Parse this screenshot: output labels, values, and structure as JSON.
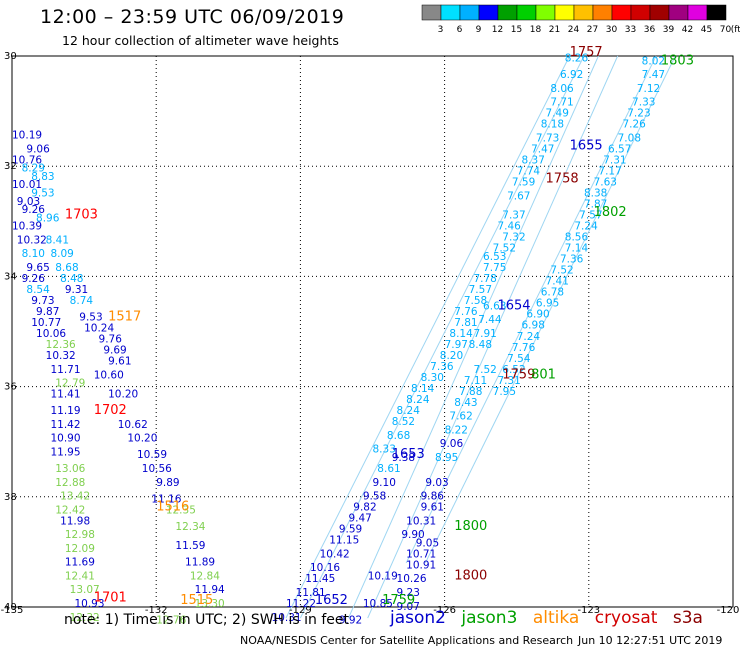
{
  "title": "12:00 – 23:59 UTC 06/09/2019",
  "subtitle": "12 hour collection of altimeter wave heights",
  "colorbar": {
    "labels": [
      "3",
      "6",
      "9",
      "12",
      "15",
      "18",
      "21",
      "24",
      "27",
      "30",
      "33",
      "36",
      "39",
      "42",
      "45",
      "70",
      "(ft)"
    ],
    "colors": [
      "#888888",
      "#00e0ff",
      "#00b0ff",
      "#0000ff",
      "#00a000",
      "#00d000",
      "#80ff00",
      "#ffff00",
      "#ffc000",
      "#ff8000",
      "#ff0000",
      "#d00000",
      "#a00000",
      "#a00080",
      "#e000e0",
      "#000000"
    ]
  },
  "axes": {
    "lon_labels": [
      "-135",
      "-132",
      "-129",
      "-126",
      "-123",
      "-120"
    ],
    "lat_labels": [
      "30",
      "32",
      "34",
      "36",
      "38",
      "40"
    ]
  },
  "note": "note: 1) Time is in UTC; 2) SWH is in feet",
  "legend": [
    {
      "label": "jason2",
      "color": "#0000cc"
    },
    {
      "label": "jason3",
      "color": "#00a000"
    },
    {
      "label": "altika",
      "color": "#ff8c00"
    },
    {
      "label": "cryosat",
      "color": "#d00000"
    },
    {
      "label": "s3a",
      "color": "#8b0000"
    }
  ],
  "credit": "NOAA/NESDIS Center for Satellite Applications and Research",
  "timestamp": "Jun 10 12:27:51 UTC 2019",
  "time_labels": [
    {
      "text": "1703",
      "color": "#ff0000",
      "lon": -133.9,
      "lat": 32.95
    },
    {
      "text": "1517",
      "color": "#ff8c00",
      "lon": -133.0,
      "lat": 34.8
    },
    {
      "text": "1702",
      "color": "#ff0000",
      "lon": -133.3,
      "lat": 36.5
    },
    {
      "text": "1516",
      "color": "#ff8c00",
      "lon": -132.0,
      "lat": 38.25
    },
    {
      "text": "1701",
      "color": "#ff0000",
      "lon": -133.3,
      "lat": 39.9
    },
    {
      "text": "1515",
      "color": "#ff8c00",
      "lon": -131.5,
      "lat": 39.95
    },
    {
      "text": "1652",
      "color": "#0000cc",
      "lon": -128.7,
      "lat": 39.95
    },
    {
      "text": "1759",
      "color": "#00a000",
      "lon": -127.3,
      "lat": 39.95
    },
    {
      "text": "1800",
      "color": "#00a000",
      "lon": -125.8,
      "lat": 38.6
    },
    {
      "text": "1800",
      "color": "#8b0000",
      "lon": -125.8,
      "lat": 39.5
    },
    {
      "text": "1653",
      "color": "#0000cc",
      "lon": -127.1,
      "lat": 37.3
    },
    {
      "text": "1759",
      "color": "#8b0000",
      "lon": -124.8,
      "lat": 35.85
    },
    {
      "text": "801",
      "color": "#00a000",
      "lon": -124.2,
      "lat": 35.85
    },
    {
      "text": "1654",
      "color": "#0000cc",
      "lon": -124.9,
      "lat": 34.6
    },
    {
      "text": "1802",
      "color": "#00a000",
      "lon": -122.9,
      "lat": 32.9
    },
    {
      "text": "1758",
      "color": "#8b0000",
      "lon": -123.9,
      "lat": 32.3
    },
    {
      "text": "1655",
      "color": "#0000cc",
      "lon": -123.4,
      "lat": 31.7
    },
    {
      "text": "1757",
      "color": "#8b0000",
      "lon": -123.4,
      "lat": 30.0
    },
    {
      "text": "1803",
      "color": "#00a000",
      "lon": -121.5,
      "lat": 30.15
    }
  ],
  "swh_points": [
    {
      "v": "10.19",
      "c": "#0000cc",
      "lon": -135.0,
      "lat": 31.5
    },
    {
      "v": "9.06",
      "c": "#0000cc",
      "lon": -134.7,
      "lat": 31.75
    },
    {
      "v": "10.76",
      "c": "#0000cc",
      "lon": -135.0,
      "lat": 31.95
    },
    {
      "v": "8.29",
      "c": "#00b0ff",
      "lon": -134.8,
      "lat": 32.1
    },
    {
      "v": "8.83",
      "c": "#00b0ff",
      "lon": -134.6,
      "lat": 32.25
    },
    {
      "v": "10.01",
      "c": "#0000cc",
      "lon": -135.0,
      "lat": 32.4
    },
    {
      "v": "9.53",
      "c": "#00b0ff",
      "lon": -134.6,
      "lat": 32.55
    },
    {
      "v": "9.03",
      "c": "#0000cc",
      "lon": -134.9,
      "lat": 32.7
    },
    {
      "v": "9.26",
      "c": "#0000cc",
      "lon": -134.8,
      "lat": 32.85
    },
    {
      "v": "8.96",
      "c": "#00b0ff",
      "lon": -134.5,
      "lat": 33.0
    },
    {
      "v": "10.39",
      "c": "#0000cc",
      "lon": -135.0,
      "lat": 33.15
    },
    {
      "v": "10.32",
      "c": "#0000cc",
      "lon": -134.9,
      "lat": 33.4
    },
    {
      "v": "8.41",
      "c": "#00b0ff",
      "lon": -134.3,
      "lat": 33.4
    },
    {
      "v": "8.10",
      "c": "#00b0ff",
      "lon": -134.8,
      "lat": 33.65
    },
    {
      "v": "8.09",
      "c": "#00b0ff",
      "lon": -134.2,
      "lat": 33.65
    },
    {
      "v": "9.65",
      "c": "#0000cc",
      "lon": -134.7,
      "lat": 33.9
    },
    {
      "v": "8.68",
      "c": "#00b0ff",
      "lon": -134.1,
      "lat": 33.9
    },
    {
      "v": "9.26",
      "c": "#0000cc",
      "lon": -134.8,
      "lat": 34.1
    },
    {
      "v": "8.48",
      "c": "#00b0ff",
      "lon": -134.0,
      "lat": 34.1
    },
    {
      "v": "8.54",
      "c": "#00b0ff",
      "lon": -134.7,
      "lat": 34.3
    },
    {
      "v": "9.31",
      "c": "#0000cc",
      "lon": -133.9,
      "lat": 34.3
    },
    {
      "v": "9.73",
      "c": "#0000cc",
      "lon": -134.6,
      "lat": 34.5
    },
    {
      "v": "8.74",
      "c": "#00b0ff",
      "lon": -133.8,
      "lat": 34.5
    },
    {
      "v": "9.87",
      "c": "#0000cc",
      "lon": -134.5,
      "lat": 34.7
    },
    {
      "v": "9.53",
      "c": "#0000cc",
      "lon": -133.6,
      "lat": 34.8
    },
    {
      "v": "10.77",
      "c": "#0000cc",
      "lon": -134.6,
      "lat": 34.9
    },
    {
      "v": "10.24",
      "c": "#0000cc",
      "lon": -133.5,
      "lat": 35.0
    },
    {
      "v": "10.06",
      "c": "#0000cc",
      "lon": -134.5,
      "lat": 35.1
    },
    {
      "v": "9.76",
      "c": "#0000cc",
      "lon": -133.2,
      "lat": 35.2
    },
    {
      "v": "12.36",
      "c": "#80d050",
      "lon": -134.3,
      "lat": 35.3
    },
    {
      "v": "9.69",
      "c": "#0000cc",
      "lon": -133.1,
      "lat": 35.4
    },
    {
      "v": "10.32",
      "c": "#0000cc",
      "lon": -134.3,
      "lat": 35.5
    },
    {
      "v": "9.61",
      "c": "#0000cc",
      "lon": -133.0,
      "lat": 35.6
    },
    {
      "v": "11.71",
      "c": "#0000cc",
      "lon": -134.2,
      "lat": 35.75
    },
    {
      "v": "10.60",
      "c": "#0000cc",
      "lon": -133.3,
      "lat": 35.85
    },
    {
      "v": "12.79",
      "c": "#80d050",
      "lon": -134.1,
      "lat": 36.0
    },
    {
      "v": "11.41",
      "c": "#0000cc",
      "lon": -134.2,
      "lat": 36.2
    },
    {
      "v": "10.20",
      "c": "#0000cc",
      "lon": -133.0,
      "lat": 36.2
    },
    {
      "v": "11.19",
      "c": "#0000cc",
      "lon": -134.2,
      "lat": 36.5
    },
    {
      "v": "11.42",
      "c": "#0000cc",
      "lon": -134.2,
      "lat": 36.75
    },
    {
      "v": "10.62",
      "c": "#0000cc",
      "lon": -132.8,
      "lat": 36.75
    },
    {
      "v": "10.90",
      "c": "#0000cc",
      "lon": -134.2,
      "lat": 37.0
    },
    {
      "v": "10.20",
      "c": "#0000cc",
      "lon": -132.6,
      "lat": 37.0
    },
    {
      "v": "11.95",
      "c": "#0000cc",
      "lon": -134.2,
      "lat": 37.25
    },
    {
      "v": "10.59",
      "c": "#0000cc",
      "lon": -132.4,
      "lat": 37.3
    },
    {
      "v": "13.06",
      "c": "#80d050",
      "lon": -134.1,
      "lat": 37.55
    },
    {
      "v": "10.56",
      "c": "#0000cc",
      "lon": -132.3,
      "lat": 37.55
    },
    {
      "v": "12.88",
      "c": "#80d050",
      "lon": -134.1,
      "lat": 37.8
    },
    {
      "v": "9.89",
      "c": "#0000cc",
      "lon": -132.0,
      "lat": 37.8
    },
    {
      "v": "13.42",
      "c": "#80d050",
      "lon": -134.0,
      "lat": 38.05
    },
    {
      "v": "11.16",
      "c": "#0000cc",
      "lon": -132.1,
      "lat": 38.1
    },
    {
      "v": "12.42",
      "c": "#80d050",
      "lon": -134.1,
      "lat": 38.3
    },
    {
      "v": "12.35",
      "c": "#80d050",
      "lon": -131.8,
      "lat": 38.3
    },
    {
      "v": "11.98",
      "c": "#0000cc",
      "lon": -134.0,
      "lat": 38.5
    },
    {
      "v": "12.98",
      "c": "#80d050",
      "lon": -133.9,
      "lat": 38.75
    },
    {
      "v": "12.34",
      "c": "#80d050",
      "lon": -131.6,
      "lat": 38.6
    },
    {
      "v": "12.09",
      "c": "#80d050",
      "lon": -133.9,
      "lat": 39.0
    },
    {
      "v": "11.59",
      "c": "#0000cc",
      "lon": -131.6,
      "lat": 38.95
    },
    {
      "v": "11.69",
      "c": "#0000cc",
      "lon": -133.9,
      "lat": 39.25
    },
    {
      "v": "11.89",
      "c": "#0000cc",
      "lon": -131.4,
      "lat": 39.25
    },
    {
      "v": "12.41",
      "c": "#80d050",
      "lon": -133.9,
      "lat": 39.5
    },
    {
      "v": "12.84",
      "c": "#80d050",
      "lon": -131.3,
      "lat": 39.5
    },
    {
      "v": "13.07",
      "c": "#80d050",
      "lon": -133.8,
      "lat": 39.75
    },
    {
      "v": "11.94",
      "c": "#0000cc",
      "lon": -131.2,
      "lat": 39.75
    },
    {
      "v": "10.93",
      "c": "#0000cc",
      "lon": -133.7,
      "lat": 40.0
    },
    {
      "v": "13.30",
      "c": "#80d050",
      "lon": -131.2,
      "lat": 40.0
    },
    {
      "v": "12.32",
      "c": "#80d050",
      "lon": -133.8,
      "lat": 40.25
    },
    {
      "v": "12.76",
      "c": "#80d050",
      "lon": -132.0,
      "lat": 40.3
    },
    {
      "v": "10.31",
      "c": "#0000cc",
      "lon": -129.6,
      "lat": 40.25
    },
    {
      "v": "11.22",
      "c": "#0000cc",
      "lon": -129.3,
      "lat": 40.0
    },
    {
      "v": "11.81",
      "c": "#0000cc",
      "lon": -129.1,
      "lat": 39.8
    },
    {
      "v": "11.45",
      "c": "#0000cc",
      "lon": -128.9,
      "lat": 39.55
    },
    {
      "v": "10.16",
      "c": "#0000cc",
      "lon": -128.8,
      "lat": 39.35
    },
    {
      "v": "10.42",
      "c": "#0000cc",
      "lon": -128.6,
      "lat": 39.1
    },
    {
      "v": "11.15",
      "c": "#0000cc",
      "lon": -128.4,
      "lat": 38.85
    },
    {
      "v": "9.59",
      "c": "#0000cc",
      "lon": -128.2,
      "lat": 38.65
    },
    {
      "v": "9.47",
      "c": "#0000cc",
      "lon": -128.0,
      "lat": 38.45
    },
    {
      "v": "9.82",
      "c": "#0000cc",
      "lon": -127.9,
      "lat": 38.25
    },
    {
      "v": "9.58",
      "c": "#0000cc",
      "lon": -127.7,
      "lat": 38.05
    },
    {
      "v": "9.10",
      "c": "#0000cc",
      "lon": -127.5,
      "lat": 37.8
    },
    {
      "v": "8.61",
      "c": "#00b0ff",
      "lon": -127.4,
      "lat": 37.55
    },
    {
      "v": "9.38",
      "c": "#0000cc",
      "lon": -127.1,
      "lat": 37.35
    },
    {
      "v": "8.33",
      "c": "#00b0ff",
      "lon": -127.5,
      "lat": 37.2
    },
    {
      "v": "8.68",
      "c": "#00b0ff",
      "lon": -127.2,
      "lat": 36.95
    },
    {
      "v": "8.52",
      "c": "#00b0ff",
      "lon": -127.1,
      "lat": 36.7
    },
    {
      "v": "8.24",
      "c": "#00b0ff",
      "lon": -127.0,
      "lat": 36.5
    },
    {
      "v": "8.24",
      "c": "#00b0ff",
      "lon": -126.8,
      "lat": 36.3
    },
    {
      "v": "8.14",
      "c": "#00b0ff",
      "lon": -126.7,
      "lat": 36.1
    },
    {
      "v": "8.30",
      "c": "#00b0ff",
      "lon": -126.5,
      "lat": 35.9
    },
    {
      "v": "7.36",
      "c": "#00b0ff",
      "lon": -126.3,
      "lat": 35.7
    },
    {
      "v": "8.20",
      "c": "#00b0ff",
      "lon": -126.1,
      "lat": 35.5
    },
    {
      "v": "7.97",
      "c": "#00b0ff",
      "lon": -126.0,
      "lat": 35.3
    },
    {
      "v": "8.14",
      "c": "#00b0ff",
      "lon": -125.9,
      "lat": 35.1
    },
    {
      "v": "7.81",
      "c": "#00b0ff",
      "lon": -125.8,
      "lat": 34.9
    },
    {
      "v": "7.76",
      "c": "#00b0ff",
      "lon": -125.8,
      "lat": 34.7
    },
    {
      "v": "7.58",
      "c": "#00b0ff",
      "lon": -125.6,
      "lat": 34.5
    },
    {
      "v": "7.57",
      "c": "#00b0ff",
      "lon": -125.5,
      "lat": 34.3
    },
    {
      "v": "7.78",
      "c": "#00b0ff",
      "lon": -125.4,
      "lat": 34.1
    },
    {
      "v": "7.75",
      "c": "#00b0ff",
      "lon": -125.2,
      "lat": 33.9
    },
    {
      "v": "6.53",
      "c": "#00b0ff",
      "lon": -125.2,
      "lat": 33.7
    },
    {
      "v": "7.52",
      "c": "#00b0ff",
      "lon": -125.0,
      "lat": 33.55
    },
    {
      "v": "7.32",
      "c": "#00b0ff",
      "lon": -124.8,
      "lat": 33.35
    },
    {
      "v": "7.46",
      "c": "#00b0ff",
      "lon": -124.9,
      "lat": 33.15
    },
    {
      "v": "7.37",
      "c": "#00b0ff",
      "lon": -124.8,
      "lat": 32.95
    },
    {
      "v": "7.67",
      "c": "#00b0ff",
      "lon": -124.7,
      "lat": 32.6
    },
    {
      "v": "7.59",
      "c": "#00b0ff",
      "lon": -124.6,
      "lat": 32.35
    },
    {
      "v": "7.74",
      "c": "#00b0ff",
      "lon": -124.5,
      "lat": 32.15
    },
    {
      "v": "8.37",
      "c": "#00b0ff",
      "lon": -124.4,
      "lat": 31.95
    },
    {
      "v": "7.47",
      "c": "#00b0ff",
      "lon": -124.2,
      "lat": 31.75
    },
    {
      "v": "7.73",
      "c": "#00b0ff",
      "lon": -124.1,
      "lat": 31.55
    },
    {
      "v": "8.18",
      "c": "#00b0ff",
      "lon": -124.0,
      "lat": 31.3
    },
    {
      "v": "7.49",
      "c": "#00b0ff",
      "lon": -123.9,
      "lat": 31.1
    },
    {
      "v": "7.71",
      "c": "#00b0ff",
      "lon": -123.8,
      "lat": 30.9
    },
    {
      "v": "8.06",
      "c": "#00b0ff",
      "lon": -123.8,
      "lat": 30.65
    },
    {
      "v": "6.92",
      "c": "#00b0ff",
      "lon": -123.6,
      "lat": 30.4
    },
    {
      "v": "8.26",
      "c": "#00b0ff",
      "lon": -123.5,
      "lat": 30.1
    },
    {
      "v": "10.85",
      "c": "#0000cc",
      "lon": -127.7,
      "lat": 40.0
    },
    {
      "v": "10.19",
      "c": "#0000cc",
      "lon": -127.6,
      "lat": 39.5
    },
    {
      "v": "10.26",
      "c": "#0000cc",
      "lon": -127.0,
      "lat": 39.55
    },
    {
      "v": "10.91",
      "c": "#0000cc",
      "lon": -126.8,
      "lat": 39.3
    },
    {
      "v": "10.71",
      "c": "#0000cc",
      "lon": -126.8,
      "lat": 39.1
    },
    {
      "v": "9.05",
      "c": "#0000cc",
      "lon": -126.6,
      "lat": 38.9
    },
    {
      "v": "9.90",
      "c": "#0000cc",
      "lon": -126.9,
      "lat": 38.75
    },
    {
      "v": "10.31",
      "c": "#0000cc",
      "lon": -126.8,
      "lat": 38.5
    },
    {
      "v": "9.61",
      "c": "#0000cc",
      "lon": -126.5,
      "lat": 38.25
    },
    {
      "v": "9.86",
      "c": "#0000cc",
      "lon": -126.5,
      "lat": 38.05
    },
    {
      "v": "9.03",
      "c": "#0000cc",
      "lon": -126.4,
      "lat": 37.8
    },
    {
      "v": "8.95",
      "c": "#00b0ff",
      "lon": -126.2,
      "lat": 37.35
    },
    {
      "v": "9.06",
      "c": "#0000cc",
      "lon": -126.1,
      "lat": 37.1
    },
    {
      "v": "8.22",
      "c": "#00b0ff",
      "lon": -126.0,
      "lat": 36.85
    },
    {
      "v": "7.62",
      "c": "#00b0ff",
      "lon": -125.9,
      "lat": 36.6
    },
    {
      "v": "8.43",
      "c": "#00b0ff",
      "lon": -125.8,
      "lat": 36.35
    },
    {
      "v": "7.88",
      "c": "#00b0ff",
      "lon": -125.7,
      "lat": 36.15
    },
    {
      "v": "7.11",
      "c": "#00b0ff",
      "lon": -125.6,
      "lat": 35.95
    },
    {
      "v": "7.52",
      "c": "#00b0ff",
      "lon": -125.4,
      "lat": 35.75
    },
    {
      "v": "8.48",
      "c": "#00b0ff",
      "lon": -125.5,
      "lat": 35.3
    },
    {
      "v": "7.91",
      "c": "#00b0ff",
      "lon": -125.4,
      "lat": 35.1
    },
    {
      "v": "7.44",
      "c": "#00b0ff",
      "lon": -125.3,
      "lat": 34.85
    },
    {
      "v": "6.63",
      "c": "#00b0ff",
      "lon": -125.2,
      "lat": 34.6
    },
    {
      "v": "9.23",
      "c": "#0000cc",
      "lon": -127.0,
      "lat": 39.8
    },
    {
      "v": "9.07",
      "c": "#0000cc",
      "lon": -127.0,
      "lat": 40.05
    },
    {
      "v": "9.92",
      "c": "#0000cc",
      "lon": -128.2,
      "lat": 40.3
    },
    {
      "v": "8.02",
      "c": "#00b0ff",
      "lon": -121.9,
      "lat": 30.15
    },
    {
      "v": "7.47",
      "c": "#00b0ff",
      "lon": -121.9,
      "lat": 30.4
    },
    {
      "v": "7.12",
      "c": "#00b0ff",
      "lon": -122.0,
      "lat": 30.65
    },
    {
      "v": "7.33",
      "c": "#00b0ff",
      "lon": -122.1,
      "lat": 30.9
    },
    {
      "v": "7.23",
      "c": "#00b0ff",
      "lon": -122.2,
      "lat": 31.1
    },
    {
      "v": "7.26",
      "c": "#00b0ff",
      "lon": -122.3,
      "lat": 31.3
    },
    {
      "v": "7.08",
      "c": "#00b0ff",
      "lon": -122.4,
      "lat": 31.55
    },
    {
      "v": "6.57",
      "c": "#00b0ff",
      "lon": -122.6,
      "lat": 31.75
    },
    {
      "v": "7.31",
      "c": "#00b0ff",
      "lon": -122.7,
      "lat": 31.95
    },
    {
      "v": "7.17",
      "c": "#00b0ff",
      "lon": -122.8,
      "lat": 32.15
    },
    {
      "v": "7.63",
      "c": "#00b0ff",
      "lon": -122.9,
      "lat": 32.35
    },
    {
      "v": "8.38",
      "c": "#00b0ff",
      "lon": -123.1,
      "lat": 32.55
    },
    {
      "v": "7.87",
      "c": "#00b0ff",
      "lon": -123.1,
      "lat": 32.75
    },
    {
      "v": "7.57",
      "c": "#00b0ff",
      "lon": -123.2,
      "lat": 32.95
    },
    {
      "v": "7.24",
      "c": "#00b0ff",
      "lon": -123.3,
      "lat": 33.15
    },
    {
      "v": "8.56",
      "c": "#00b0ff",
      "lon": -123.5,
      "lat": 33.35
    },
    {
      "v": "7.14",
      "c": "#00b0ff",
      "lon": -123.5,
      "lat": 33.55
    },
    {
      "v": "7.36",
      "c": "#00b0ff",
      "lon": -123.6,
      "lat": 33.75
    },
    {
      "v": "7.52",
      "c": "#00b0ff",
      "lon": -123.8,
      "lat": 33.95
    },
    {
      "v": "7.41",
      "c": "#00b0ff",
      "lon": -123.9,
      "lat": 34.15
    },
    {
      "v": "6.78",
      "c": "#00b0ff",
      "lon": -124.0,
      "lat": 34.35
    },
    {
      "v": "6.95",
      "c": "#00b0ff",
      "lon": -124.1,
      "lat": 34.55
    },
    {
      "v": "6.90",
      "c": "#00b0ff",
      "lon": -124.3,
      "lat": 34.75
    },
    {
      "v": "6.98",
      "c": "#00b0ff",
      "lon": -124.4,
      "lat": 34.95
    },
    {
      "v": "7.24",
      "c": "#00b0ff",
      "lon": -124.5,
      "lat": 35.15
    },
    {
      "v": "7.76",
      "c": "#00b0ff",
      "lon": -124.6,
      "lat": 35.35
    },
    {
      "v": "7.54",
      "c": "#00b0ff",
      "lon": -124.7,
      "lat": 35.55
    },
    {
      "v": "6.52",
      "c": "#00b0ff",
      "lon": -124.8,
      "lat": 35.75
    },
    {
      "v": "7.31",
      "c": "#00b0ff",
      "lon": -124.9,
      "lat": 35.95
    },
    {
      "v": "7.95",
      "c": "#00b0ff",
      "lon": -125.0,
      "lat": 36.15
    }
  ]
}
